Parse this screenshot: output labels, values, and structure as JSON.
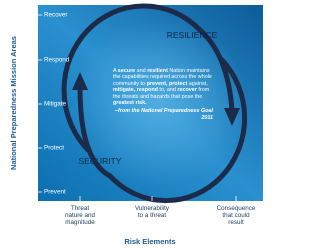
{
  "diagram": {
    "y_axis_title": "National Preparedness Mission Areas",
    "x_axis_title": "Risk Elements",
    "y_levels": [
      "Recover",
      "Respond",
      "Mitigate",
      "Protect",
      "Prevent"
    ],
    "x_levels": [
      [
        "Threat",
        "nature and",
        "magnitude"
      ],
      [
        "Vulnerability",
        "to a threat"
      ],
      [
        "Consequence",
        "that could",
        "result"
      ]
    ],
    "cycle_labels": {
      "top": "RESILIENCE",
      "bottom": "SECURITY"
    },
    "quote": {
      "segments": [
        {
          "text": "A ",
          "bold": false
        },
        {
          "text": "secure",
          "bold": true
        },
        {
          "text": " and ",
          "bold": false
        },
        {
          "text": "resilient",
          "bold": true
        },
        {
          "text": " Nation maintains the capabilities required across the whole community to ",
          "bold": false
        },
        {
          "text": "prevent, protect",
          "bold": true
        },
        {
          "text": " against, ",
          "bold": false
        },
        {
          "text": "mitigate,",
          "bold": true
        },
        {
          "text": " ",
          "bold": false
        },
        {
          "text": "respond",
          "bold": true
        },
        {
          "text": " to, and ",
          "bold": false
        },
        {
          "text": "recover",
          "bold": true
        },
        {
          "text": " from the threats and hazards that pose the ",
          "bold": false
        },
        {
          "text": "greatest risk.",
          "bold": true
        }
      ],
      "source": "–from the National Preparedness Goal 2011"
    }
  }
}
